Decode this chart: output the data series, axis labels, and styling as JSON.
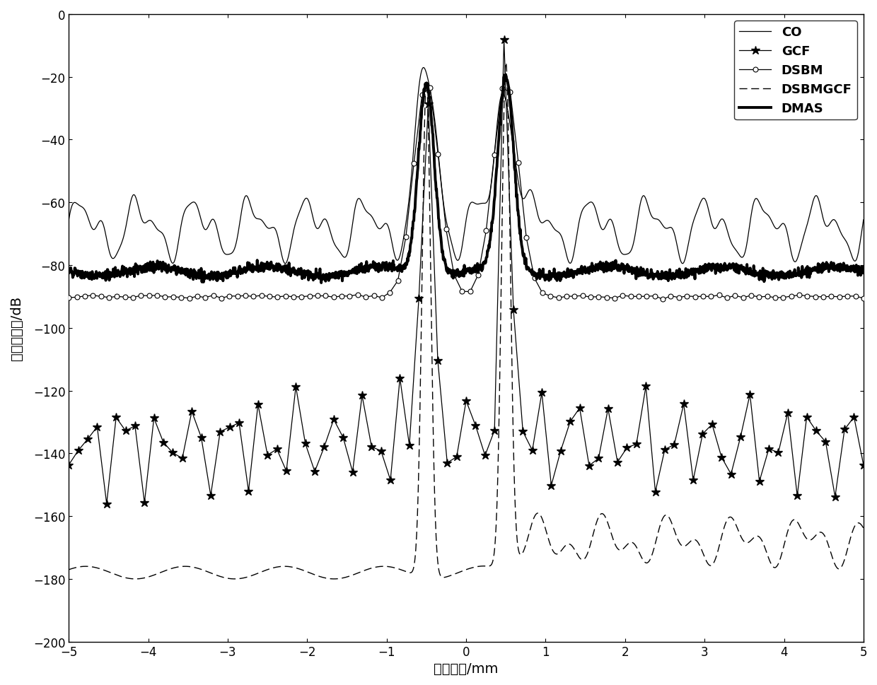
{
  "xlabel": "横向距离/mm",
  "ylabel": "归一化幅度/dB",
  "xlim": [
    -5,
    5
  ],
  "ylim": [
    -200,
    0
  ],
  "yticks": [
    0,
    -20,
    -40,
    -60,
    -80,
    -100,
    -120,
    -140,
    -160,
    -180,
    -200
  ],
  "xticks": [
    -5,
    -4,
    -3,
    -2,
    -1,
    0,
    1,
    2,
    3,
    4,
    5
  ],
  "legend_labels": [
    "CO",
    "GCF",
    "DSBM",
    "DSBMGCF",
    "DMAS"
  ],
  "figsize": [
    12.4,
    9.7
  ],
  "dpi": 100,
  "background_color": "#ffffff"
}
